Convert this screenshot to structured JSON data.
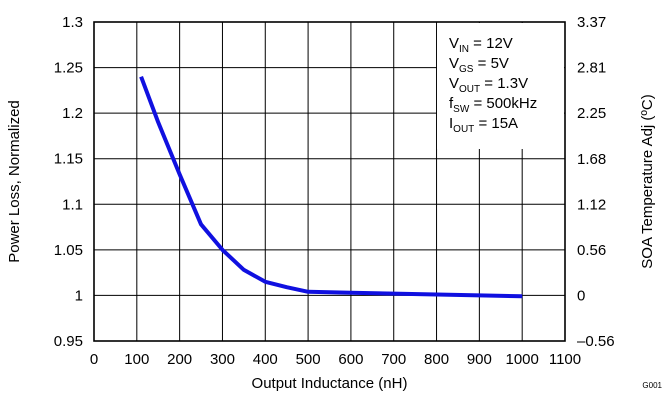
{
  "chart_data": {
    "type": "line",
    "title": "",
    "xlabel": "Output Inductance (nH)",
    "ylabel": "Power Loss, Normalized",
    "y2label": "SOA Temperature Adj (ºC)",
    "xlim": [
      0,
      1100
    ],
    "ylim": [
      0.95,
      1.3
    ],
    "y2lim": [
      -0.56,
      3.37
    ],
    "xticks": [
      0,
      100,
      200,
      300,
      400,
      500,
      600,
      700,
      800,
      900,
      1000,
      1100
    ],
    "yticks": [
      0.95,
      1,
      1.05,
      1.1,
      1.15,
      1.2,
      1.25,
      1.3
    ],
    "ytick_labels": [
      "0.95",
      "1",
      "1.05",
      "1.1",
      "1.15",
      "1.2",
      "1.25",
      "1.3"
    ],
    "y2ticks": [
      -0.56,
      0,
      0.56,
      1.12,
      1.68,
      2.25,
      2.81,
      3.37
    ],
    "y2tick_labels": [
      "–0.56",
      "0",
      "0.56",
      "1.12",
      "1.68",
      "2.25",
      "2.81",
      "3.37"
    ],
    "grid": true,
    "series": [
      {
        "color": "#1010e0",
        "x": [
          110,
          150,
          200,
          250,
          300,
          350,
          400,
          450,
          500,
          600,
          700,
          800,
          900,
          1000
        ],
        "y": [
          1.24,
          1.19,
          1.133,
          1.078,
          1.05,
          1.028,
          1.015,
          1.009,
          1.004,
          1.003,
          1.002,
          1.001,
          1.0,
          0.999
        ]
      }
    ],
    "annotations": [
      {
        "main": "V",
        "sub": "IN",
        "rest": " = 12V"
      },
      {
        "main": "V",
        "sub": "GS",
        "rest": " = 5V"
      },
      {
        "main": "V",
        "sub": "OUT",
        "rest": " = 1.3V"
      },
      {
        "main": "f",
        "sub": "SW",
        "rest": " = 500kHz"
      },
      {
        "main": "I",
        "sub": "OUT",
        "rest": " = 15A"
      }
    ],
    "figure_id": "G001"
  }
}
